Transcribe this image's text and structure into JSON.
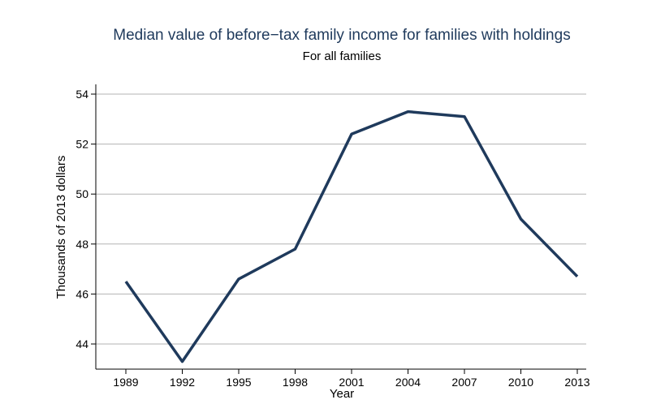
{
  "chart_data": {
    "type": "line",
    "title": "Median value of before−tax family income for families with holdings",
    "subtitle": "For all families",
    "xlabel": "Year",
    "ylabel": "Thousands of 2013 dollars",
    "categories": [
      "1989",
      "1992",
      "1995",
      "1998",
      "2001",
      "2004",
      "2007",
      "2010",
      "2013"
    ],
    "series": [
      {
        "values": [
          46.5,
          43.3,
          46.6,
          47.8,
          52.4,
          53.3,
          53.1,
          49.0,
          46.7
        ]
      }
    ],
    "yticks": [
      "44",
      "46",
      "48",
      "50",
      "52",
      "54"
    ],
    "ylim": [
      43,
      54.4
    ],
    "grid": true,
    "line_color": "#1f3a5c"
  }
}
